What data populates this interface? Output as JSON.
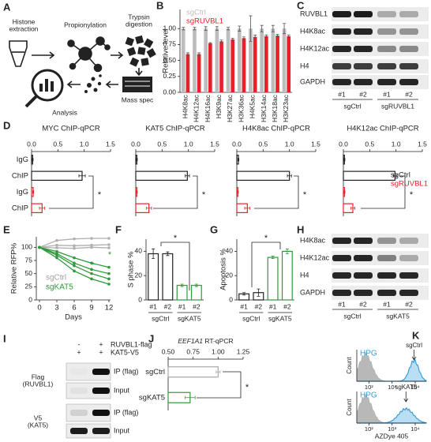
{
  "panel_labels": [
    "A",
    "B",
    "C",
    "D",
    "E",
    "F",
    "G",
    "H",
    "I",
    "J",
    "K"
  ],
  "diagram": {
    "steps": [
      "Histone extraction",
      "Propionylation",
      "Trypsin digestion",
      "Mass spec",
      "Analysis"
    ]
  },
  "blots": [
    {
      "rows": [
        "RUVBL1",
        "H4K8ac",
        "H4K12ac",
        "H4",
        "GAPDH"
      ],
      "lanes": [
        "#1",
        "#2",
        "#1",
        "#2"
      ],
      "groups": [
        "sgCtrl",
        "sgRUVBL1"
      ]
    },
    {
      "rows": [
        "H4K8ac",
        "H4K12ac",
        "H4",
        "GAPDH"
      ],
      "lanes": [
        "#1",
        "#2",
        "#1",
        "#2"
      ],
      "groups": [
        "sgCtrl",
        "sgKAT5"
      ]
    },
    {
      "conditions": [
        {
          "name": "RUVBL1-flag",
          "lanes": [
            "-",
            "+"
          ]
        },
        {
          "name": "KAT5-V5",
          "lanes": [
            "+",
            "+"
          ]
        }
      ],
      "antibodies": [
        "Flag (RUVBL1)",
        "V5 (KAT5)"
      ],
      "fractions": [
        "IP (flag)",
        "Input",
        "IP (flag)",
        "Input"
      ]
    }
  ],
  "chart_data": [
    {
      "type": "bar",
      "ylabel": "Relative level",
      "categories": [
        "H4K8ac",
        "H4K12ac",
        "H4K16ac",
        "H3K9ac",
        "H3K27ac",
        "H3K36ac",
        "H4K5ac",
        "H3K14ac",
        "H3K18ac",
        "H3K23ac"
      ],
      "series": [
        {
          "name": "sgCtrl",
          "color": "#bdbdbd",
          "values": [
            1,
            1,
            1,
            1,
            1,
            1,
            1,
            1,
            1,
            1
          ],
          "errors": [
            0.02,
            0.02,
            0.03,
            0.03,
            0.02,
            0.04,
            0.2,
            0.05,
            0.05,
            0.08
          ]
        },
        {
          "name": "sgRUVBL1",
          "color": "#e8202a",
          "values": [
            0.6,
            0.6,
            0.77,
            0.8,
            0.83,
            0.85,
            0.87,
            0.88,
            0.89,
            0.88
          ],
          "errors": [
            0.02,
            0.02,
            0.01,
            0.02,
            0.02,
            0.02,
            0.03,
            0.02,
            0.02,
            0.02
          ]
        }
      ],
      "ylim": [
        0,
        1.3
      ],
      "yticks": [
        {
          "value": 0,
          "label": "0.00"
        },
        0.25,
        {
          "value": 0.5,
          "label": "0.50"
        },
        0.75,
        {
          "value": 1,
          "label": "1.00"
        }
      ]
    },
    {
      "type": "hbar",
      "title": "MYC ChIP-qPCR",
      "categories": [
        "IgG",
        "ChIP",
        "IgG",
        "ChIP"
      ],
      "values": [
        0.02,
        0.96,
        0.03,
        0.2
      ],
      "errors": [
        0.01,
        0.06,
        0.01,
        0.05
      ],
      "colors": [
        "#222222",
        "#222222",
        "#e8202a",
        "#e8202a"
      ],
      "xlim": [
        0,
        1.5
      ],
      "xticks": [
        {
          "value": 0,
          "label": "0.0"
        },
        0.5,
        {
          "value": 1,
          "label": "1.0"
        },
        1.5
      ],
      "annotations": [
        "*"
      ]
    },
    {
      "type": "hbar",
      "title": "KAT5 ChIP-qPCR",
      "values": [
        0.02,
        0.98,
        0.02,
        0.25
      ],
      "errors": [
        0.01,
        0.04,
        0.01,
        0.05
      ],
      "colors": [
        "#222222",
        "#222222",
        "#e8202a",
        "#e8202a"
      ],
      "xlim": [
        0,
        1.5
      ],
      "xticks": [
        {
          "value": 0,
          "label": "0.0"
        },
        0.5,
        {
          "value": 1,
          "label": "1.0"
        },
        1.5
      ],
      "annotations": [
        "*"
      ]
    },
    {
      "type": "hbar",
      "title": "H4K8ac ChIP-qPCR",
      "values": [
        0.03,
        1.0,
        0.02,
        0.2
      ],
      "errors": [
        0.01,
        0.04,
        0.01,
        0.05
      ],
      "colors": [
        "#222222",
        "#222222",
        "#e8202a",
        "#e8202a"
      ],
      "xlim": [
        0,
        1.5
      ],
      "xticks": [
        {
          "value": 0,
          "label": "0.0"
        },
        0.5,
        {
          "value": 1,
          "label": "1.0"
        },
        1.5
      ],
      "annotations": [
        "*"
      ]
    },
    {
      "type": "hbar",
      "title": "H4K12ac ChIP-qPCR",
      "values": [
        0.02,
        0.98,
        0.02,
        0.18
      ],
      "errors": [
        0.01,
        0.03,
        0.01,
        0.04
      ],
      "colors": [
        "#222222",
        "#222222",
        "#e8202a",
        "#e8202a"
      ],
      "xlim": [
        0,
        1.5
      ],
      "xticks": [
        {
          "value": 0,
          "label": "0.0"
        },
        0.5,
        {
          "value": 1,
          "label": "1.0"
        },
        1.5
      ],
      "legend": [
        {
          "name": "sgCtrl",
          "color": "#222222"
        },
        {
          "name": "sgRUVBL1",
          "color": "#e8202a"
        }
      ],
      "annotations": [
        "*"
      ]
    },
    {
      "type": "line",
      "ylabel": "Relative RFP%",
      "xlabel": "Days",
      "x": [
        0,
        3,
        6,
        9,
        12
      ],
      "series": [
        {
          "color": "#b0b0b0",
          "values": [
            100,
            113,
            116,
            117,
            117
          ]
        },
        {
          "color": "#b0b0b0",
          "values": [
            100,
            104,
            103,
            104,
            105
          ]
        },
        {
          "color": "#b0b0b0",
          "values": [
            100,
            99,
            98,
            100,
            99
          ]
        },
        {
          "color": "#2e9a3c",
          "values": [
            100,
            92,
            80,
            70,
            62
          ]
        },
        {
          "color": "#2e9a3c",
          "values": [
            100,
            88,
            70,
            58,
            50
          ]
        },
        {
          "color": "#2e9a3c",
          "values": [
            100,
            85,
            65,
            50,
            40
          ]
        },
        {
          "color": "#2e9a3c",
          "values": [
            100,
            80,
            55,
            40,
            30
          ]
        }
      ],
      "xlim": [
        0,
        12
      ],
      "xticks": [
        0,
        3,
        6,
        9,
        12
      ],
      "ylim": [
        0,
        120
      ],
      "yticks": [
        0,
        25,
        50,
        75,
        100
      ],
      "legend": [
        {
          "name": "sgCtrl",
          "color": "#a0a0a0"
        },
        {
          "name": "sgKAT5",
          "color": "#2e9a3c"
        }
      ],
      "annotations": [
        "*",
        "*"
      ]
    },
    {
      "type": "bar",
      "ylabel": "S phase %",
      "categories": [
        "#1",
        "#2",
        "#1",
        "#2"
      ],
      "groups": [
        "sgCtrl",
        "sgKAT5"
      ],
      "values": [
        38,
        38,
        12,
        12
      ],
      "errors": [
        4,
        1.5,
        1,
        1
      ],
      "colors": [
        "#222222",
        "#222222",
        "#2e9a3c",
        "#2e9a3c"
      ],
      "ylim": [
        0,
        50
      ],
      "yticks": [
        0,
        20,
        40
      ],
      "annotations": [
        "*"
      ]
    },
    {
      "type": "bar",
      "ylabel": "Apoptosis %",
      "categories": [
        "#1",
        "#2",
        "#1",
        "#2"
      ],
      "groups": [
        "sgCtrl",
        "sgKAT5"
      ],
      "values": [
        5,
        6,
        35,
        40
      ],
      "errors": [
        1,
        3,
        1,
        2
      ],
      "colors": [
        "#222222",
        "#222222",
        "#2e9a3c",
        "#2e9a3c"
      ],
      "ylim": [
        0,
        50
      ],
      "yticks": [
        0,
        20,
        40
      ],
      "annotations": [
        "*"
      ]
    },
    {
      "type": "hbar",
      "title": "EEF1A1 RT-qPCR",
      "categories": [
        "sgCtrl",
        "sgKAT5"
      ],
      "values": [
        1.0,
        0.72
      ],
      "errors": [
        0.02,
        0.05
      ],
      "colors": [
        "#a8a8a8",
        "#2e9a3c"
      ],
      "xlim": [
        0.5,
        1.25
      ],
      "xticks": [
        {
          "value": 0.5,
          "label": "0.50"
        },
        0.75,
        {
          "value": 1,
          "label": "1.00"
        },
        1.25
      ],
      "annotations": [
        "*"
      ]
    },
    {
      "type": "flow",
      "ylabel": "Count",
      "label": "HPG",
      "annotations": [
        "sgCtrl"
      ],
      "xscale": "log",
      "xlim": [
        30,
        30000
      ],
      "xticks": [
        {
          "value": 100,
          "label": "10²"
        },
        {
          "value": 1000,
          "label": "10³"
        },
        {
          "value": 10000,
          "label": "10⁴"
        }
      ],
      "color": "#3aa0dc"
    },
    {
      "type": "flow",
      "ylabel": "Count",
      "label": "HPG",
      "annotations": [
        "sgKAT5"
      ],
      "xlabel": "AZDye 405",
      "xscale": "log",
      "xlim": [
        30,
        30000
      ],
      "xticks": [
        {
          "value": 100,
          "label": "10²"
        },
        {
          "value": 1000,
          "label": "10³"
        },
        {
          "value": 10000,
          "label": "10⁴"
        }
      ],
      "color": "#3aa0dc"
    }
  ]
}
